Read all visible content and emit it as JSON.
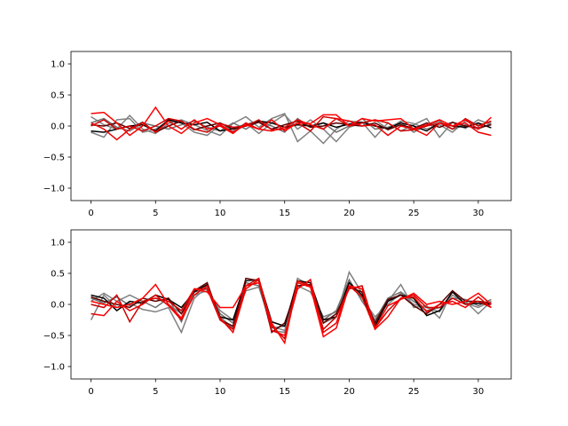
{
  "chart_data": [
    {
      "type": "line",
      "xlim": [
        -1.55,
        32.55
      ],
      "ylim": [
        -1.2,
        1.2
      ],
      "xticks": [
        0,
        5,
        10,
        15,
        20,
        25,
        30
      ],
      "xtick_labels": [
        "0",
        "5",
        "10",
        "15",
        "20",
        "25",
        "30"
      ],
      "yticks": [
        1.0,
        0.5,
        0.0,
        -0.5,
        -1.0
      ],
      "ytick_labels": [
        "1.0",
        "0.5",
        "0.0",
        "−0.5",
        "−1.0"
      ],
      "x": [
        0,
        1,
        2,
        3,
        4,
        5,
        6,
        7,
        8,
        9,
        10,
        11,
        12,
        13,
        14,
        15,
        16,
        17,
        18,
        19,
        20,
        21,
        22,
        23,
        24,
        25,
        26,
        27,
        28,
        29,
        30,
        31
      ],
      "series": [
        {
          "color": "#808080",
          "values": [
            0.15,
            0.02,
            -0.05,
            0.17,
            -0.05,
            -0.12,
            0.04,
            0.1,
            0.02,
            -0.07,
            -0.15,
            0.04,
            0.15,
            -0.02,
            0.12,
            0.2,
            -0.25,
            -0.08,
            -0.28,
            -0.05,
            0.08,
            0.06,
            -0.18,
            0.05,
            -0.08,
            0.02,
            0.12,
            -0.18,
            0.06,
            -0.04,
            0.1,
            0.02
          ]
        },
        {
          "color": "#808080",
          "values": [
            -0.1,
            -0.18,
            0.1,
            0.12,
            -0.1,
            -0.05,
            0.08,
            0.05,
            -0.1,
            -0.15,
            0.02,
            -0.08,
            0.05,
            -0.12,
            0.05,
            0.18,
            -0.05,
            0.1,
            -0.05,
            -0.25,
            -0.02,
            0.05,
            0.1,
            -0.05,
            0.08,
            0.04,
            -0.05,
            0.02,
            -0.1,
            0.08,
            0.02,
            0.06
          ]
        },
        {
          "color": "#707070",
          "values": [
            0.05,
            0.12,
            -0.02,
            -0.08,
            0.05,
            0.0,
            -0.05,
            0.02,
            0.08,
            -0.02,
            -0.08,
            0.05,
            -0.05,
            0.08,
            0.0,
            -0.1,
            0.12,
            -0.02,
            0.05,
            -0.1,
            0.0,
            0.12,
            -0.05,
            -0.02,
            0.06,
            -0.1,
            0.02,
            0.08,
            -0.05,
            0.02,
            -0.05,
            0.04
          ]
        },
        {
          "color": "#000000",
          "values": [
            -0.08,
            -0.1,
            -0.05,
            0.0,
            0.02,
            -0.08,
            0.1,
            0.05,
            0.02,
            0.06,
            -0.08,
            -0.04,
            0.02,
            0.08,
            0.05,
            -0.02,
            0.02,
            0.0,
            0.05,
            -0.02,
            0.03,
            0.06,
            0.0,
            -0.04,
            0.05,
            0.0,
            -0.08,
            0.05,
            0.0,
            -0.02,
            0.05,
            -0.03
          ]
        },
        {
          "color": "#5a0000",
          "values": [
            0.02,
            0.0,
            0.05,
            -0.04,
            0.06,
            -0.1,
            0.0,
            0.08,
            -0.06,
            0.0,
            0.05,
            -0.05,
            0.0,
            0.06,
            -0.05,
            0.02,
            0.08,
            -0.02,
            0.0,
            0.05,
            0.02,
            0.0,
            0.05,
            -0.06,
            0.02,
            -0.04,
            0.05,
            -0.02,
            0.06,
            0.0,
            -0.03,
            0.02
          ]
        },
        {
          "color": "#d00000",
          "values": [
            0.0,
            0.1,
            -0.05,
            0.0,
            -0.08,
            0.0,
            0.12,
            0.08,
            -0.05,
            -0.1,
            0.04,
            -0.02,
            0.0,
            0.1,
            -0.06,
            -0.05,
            0.05,
            -0.08,
            0.15,
            0.12,
            0.0,
            0.05,
            0.1,
            0.05,
            -0.08,
            -0.06,
            0.0,
            0.05,
            -0.05,
            0.12,
            0.0,
            0.08
          ]
        },
        {
          "color": "#ff0000",
          "values": [
            0.2,
            0.22,
            0.05,
            -0.15,
            0.0,
            0.3,
            0.0,
            -0.12,
            0.05,
            0.12,
            0.02,
            -0.1,
            0.02,
            -0.05,
            0.1,
            -0.08,
            0.05,
            0.04,
            0.18,
            0.18,
            0.0,
            0.12,
            0.08,
            0.1,
            0.12,
            -0.05,
            0.02,
            0.1,
            0.0,
            0.1,
            -0.05,
            0.14
          ]
        },
        {
          "color": "#ee0000",
          "values": [
            0.05,
            -0.05,
            -0.22,
            -0.05,
            0.05,
            -0.1,
            0.08,
            -0.05,
            0.1,
            -0.05,
            0.0,
            -0.12,
            0.05,
            -0.05,
            -0.08,
            -0.02,
            0.1,
            0.02,
            -0.05,
            0.12,
            0.08,
            0.0,
            0.02,
            -0.15,
            0.0,
            -0.05,
            -0.15,
            0.05,
            0.0,
            0.05,
            -0.1,
            -0.15
          ]
        }
      ]
    },
    {
      "type": "line",
      "xlim": [
        -1.55,
        32.55
      ],
      "ylim": [
        -1.2,
        1.2
      ],
      "xticks": [
        0,
        5,
        10,
        15,
        20,
        25,
        30
      ],
      "xtick_labels": [
        "0",
        "5",
        "10",
        "15",
        "20",
        "25",
        "30"
      ],
      "yticks": [
        1.0,
        0.5,
        0.0,
        -0.5,
        -1.0
      ],
      "ytick_labels": [
        "1.0",
        "0.5",
        "0.0",
        "−0.5",
        "−1.0"
      ],
      "x": [
        0,
        1,
        2,
        3,
        4,
        5,
        6,
        7,
        8,
        9,
        10,
        11,
        12,
        13,
        14,
        15,
        16,
        17,
        18,
        19,
        20,
        21,
        22,
        23,
        24,
        25,
        26,
        27,
        28,
        29,
        30,
        31
      ],
      "series": [
        {
          "color": "#808080",
          "values": [
            -0.25,
            0.15,
            -0.05,
            0.02,
            -0.08,
            -0.12,
            -0.05,
            -0.45,
            0.1,
            0.28,
            -0.2,
            -0.38,
            0.3,
            0.35,
            -0.42,
            -0.45,
            0.42,
            0.3,
            -0.3,
            -0.2,
            0.52,
            0.18,
            -0.28,
            0.05,
            0.32,
            -0.05,
            -0.02,
            -0.22,
            0.22,
            0.05,
            -0.15,
            0.05
          ]
        },
        {
          "color": "#808080",
          "values": [
            0.05,
            0.18,
            0.05,
            0.15,
            0.05,
            0.1,
            0.0,
            -0.15,
            0.15,
            0.22,
            -0.1,
            -0.25,
            0.22,
            0.28,
            -0.35,
            -0.42,
            0.3,
            0.2,
            -0.2,
            -0.12,
            0.35,
            0.1,
            -0.2,
            0.0,
            0.18,
            0.0,
            -0.05,
            -0.12,
            0.15,
            0.02,
            -0.05,
            0.05
          ]
        },
        {
          "color": "#707070",
          "values": [
            0.1,
            0.02,
            0.12,
            -0.02,
            0.05,
            -0.05,
            0.1,
            -0.28,
            0.2,
            0.25,
            -0.15,
            -0.3,
            0.35,
            0.3,
            -0.38,
            -0.35,
            0.35,
            0.28,
            -0.25,
            -0.1,
            0.4,
            0.05,
            -0.25,
            0.1,
            0.2,
            0.05,
            -0.1,
            -0.05,
            0.1,
            0.08,
            -0.02,
            0.08
          ]
        },
        {
          "color": "#000000",
          "values": [
            0.15,
            0.1,
            -0.1,
            0.05,
            0.02,
            0.15,
            0.08,
            -0.05,
            0.2,
            0.32,
            -0.2,
            -0.25,
            0.38,
            0.4,
            -0.28,
            -0.35,
            0.38,
            0.35,
            -0.25,
            -0.2,
            0.35,
            0.15,
            -0.35,
            0.05,
            0.15,
            0.1,
            -0.18,
            -0.1,
            0.2,
            0.0,
            0.02,
            0.0
          ]
        },
        {
          "color": "#5a0000",
          "values": [
            0.12,
            0.05,
            0.0,
            -0.05,
            0.1,
            0.05,
            0.1,
            -0.15,
            0.22,
            0.35,
            -0.25,
            -0.35,
            0.42,
            0.38,
            -0.45,
            -0.3,
            0.3,
            0.32,
            -0.3,
            -0.15,
            0.28,
            0.2,
            -0.3,
            0.08,
            0.15,
            -0.02,
            -0.15,
            0.0,
            0.22,
            0.05,
            0.05,
            0.02
          ]
        },
        {
          "color": "#d00000",
          "values": [
            0.0,
            -0.05,
            0.15,
            -0.28,
            0.05,
            0.1,
            0.05,
            -0.1,
            0.25,
            0.25,
            -0.25,
            -0.4,
            0.3,
            0.42,
            -0.35,
            -0.55,
            0.38,
            0.3,
            -0.4,
            -0.2,
            0.25,
            0.3,
            -0.38,
            -0.1,
            0.1,
            0.15,
            -0.05,
            -0.05,
            0.1,
            0.0,
            0.05,
            -0.05
          ]
        },
        {
          "color": "#ff0000",
          "values": [
            0.05,
            0.0,
            -0.05,
            0.0,
            0.1,
            0.32,
            0.0,
            -0.22,
            0.25,
            0.2,
            -0.05,
            -0.05,
            0.3,
            0.35,
            -0.3,
            -0.62,
            0.35,
            0.28,
            -0.52,
            -0.38,
            0.3,
            0.25,
            -0.38,
            -0.02,
            0.08,
            0.18,
            0.0,
            0.05,
            0.0,
            0.05,
            0.18,
            0.0
          ]
        },
        {
          "color": "#ee0000",
          "values": [
            -0.15,
            -0.18,
            0.05,
            -0.1,
            0.0,
            0.15,
            -0.02,
            -0.25,
            0.15,
            0.3,
            -0.22,
            -0.45,
            0.25,
            0.4,
            -0.42,
            -0.5,
            0.25,
            0.4,
            -0.45,
            -0.3,
            0.3,
            0.12,
            -0.4,
            -0.2,
            0.1,
            0.12,
            -0.12,
            0.0,
            0.05,
            -0.05,
            0.12,
            -0.05
          ]
        }
      ]
    }
  ]
}
